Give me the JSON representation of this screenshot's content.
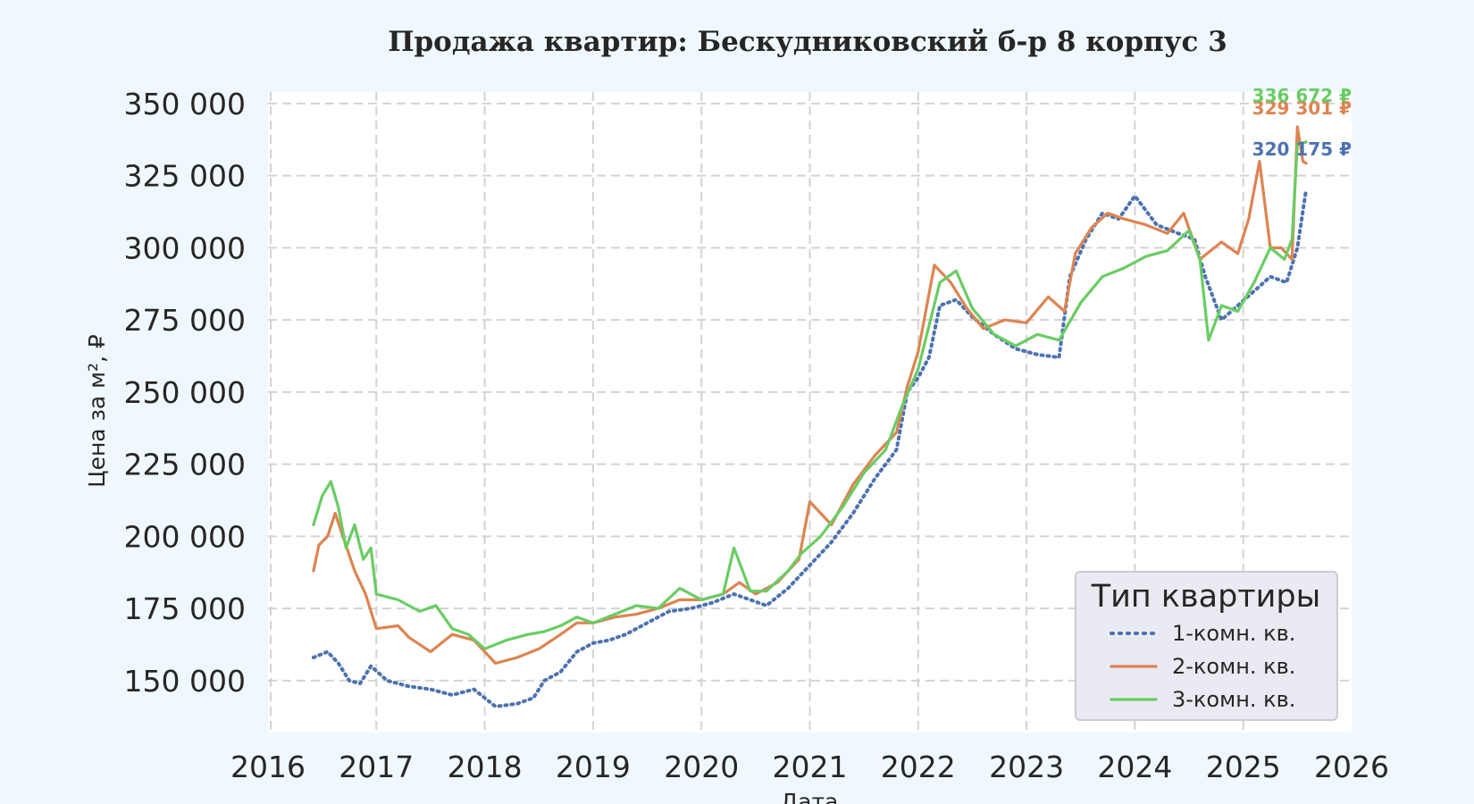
{
  "chart_data": {
    "type": "line",
    "title": "Продажа квартир: Бескудниковский б-р 8 корпус 3",
    "xlabel": "Дата",
    "ylabel": "Цена за м², ₽",
    "xlim": [
      2016.0,
      2026.0
    ],
    "ylim": [
      132000,
      354000
    ],
    "x_ticks": [
      "2016",
      "2017",
      "2018",
      "2019",
      "2020",
      "2021",
      "2022",
      "2023",
      "2024",
      "2025",
      "2026"
    ],
    "y_ticks": [
      "150 000",
      "175 000",
      "200 000",
      "225 000",
      "250 000",
      "275 000",
      "300 000",
      "325 000",
      "350 000"
    ],
    "grid": true,
    "legend": {
      "title": "Тип квартиры",
      "placement": "lower-right"
    },
    "series": [
      {
        "name": "1-комн. кв.",
        "color": "#4c72b0",
        "style": "dotted",
        "end_label": "320 175 ₽",
        "x": [
          2016.42,
          2016.55,
          2016.65,
          2016.75,
          2016.85,
          2016.95,
          2017.1,
          2017.3,
          2017.5,
          2017.7,
          2017.9,
          2018.1,
          2018.3,
          2018.45,
          2018.55,
          2018.7,
          2018.85,
          2019.0,
          2019.15,
          2019.3,
          2019.5,
          2019.7,
          2019.9,
          2020.1,
          2020.3,
          2020.45,
          2020.6,
          2020.8,
          2021.0,
          2021.2,
          2021.4,
          2021.6,
          2021.8,
          2021.9,
          2022.0,
          2022.1,
          2022.2,
          2022.35,
          2022.5,
          2022.7,
          2022.9,
          2023.1,
          2023.3,
          2023.4,
          2023.55,
          2023.7,
          2023.85,
          2024.0,
          2024.2,
          2024.4,
          2024.55,
          2024.65,
          2024.8,
          2024.95,
          2025.1,
          2025.25,
          2025.4,
          2025.5,
          2025.58
        ],
        "values": [
          158000,
          160000,
          156000,
          150000,
          149000,
          155000,
          150000,
          148000,
          147000,
          145000,
          147000,
          141000,
          142000,
          144000,
          150000,
          153000,
          160000,
          163000,
          164000,
          166000,
          170000,
          174000,
          175000,
          177000,
          180000,
          178000,
          176000,
          182000,
          190000,
          198000,
          208000,
          220000,
          230000,
          250000,
          255000,
          262000,
          280000,
          282000,
          276000,
          270000,
          265000,
          263000,
          262000,
          290000,
          303000,
          312000,
          310000,
          318000,
          308000,
          305000,
          303000,
          290000,
          275000,
          280000,
          285000,
          290000,
          288000,
          300000,
          320175
        ]
      },
      {
        "name": "2-комн. кв.",
        "color": "#dd8452",
        "style": "solid",
        "end_label": "329 301 ₽",
        "x": [
          2016.42,
          2016.47,
          2016.55,
          2016.62,
          2016.7,
          2016.8,
          2016.9,
          2017.0,
          2017.2,
          2017.3,
          2017.5,
          2017.7,
          2017.9,
          2018.1,
          2018.3,
          2018.5,
          2018.7,
          2018.85,
          2019.0,
          2019.2,
          2019.4,
          2019.6,
          2019.8,
          2020.0,
          2020.2,
          2020.35,
          2020.5,
          2020.7,
          2020.9,
          2021.0,
          2021.2,
          2021.4,
          2021.6,
          2021.8,
          2021.9,
          2022.0,
          2022.15,
          2022.3,
          2022.45,
          2022.6,
          2022.8,
          2023.0,
          2023.2,
          2023.35,
          2023.45,
          2023.6,
          2023.75,
          2023.9,
          2024.1,
          2024.3,
          2024.45,
          2024.6,
          2024.8,
          2024.95,
          2025.05,
          2025.15,
          2025.25,
          2025.35,
          2025.45,
          2025.5,
          2025.55,
          2025.58
        ],
        "values": [
          188000,
          197000,
          200000,
          208000,
          199000,
          188000,
          180000,
          168000,
          169000,
          165000,
          160000,
          166000,
          164000,
          156000,
          158000,
          161000,
          166000,
          170000,
          170000,
          172000,
          173000,
          175000,
          178000,
          178000,
          180000,
          184000,
          180000,
          184000,
          192000,
          212000,
          204000,
          218000,
          228000,
          236000,
          252000,
          264000,
          294000,
          288000,
          279000,
          272000,
          275000,
          274000,
          283000,
          278000,
          298000,
          307000,
          312000,
          310000,
          308000,
          305000,
          312000,
          296000,
          302000,
          298000,
          310000,
          330000,
          300000,
          300000,
          296000,
          342000,
          330000,
          329301
        ]
      },
      {
        "name": "3-комн. кв.",
        "color": "#6acc64",
        "style": "solid",
        "end_label": "336 672 ₽",
        "x": [
          2016.42,
          2016.5,
          2016.58,
          2016.65,
          2016.72,
          2016.8,
          2016.88,
          2016.95,
          2017.0,
          2017.2,
          2017.4,
          2017.55,
          2017.7,
          2017.85,
          2018.0,
          2018.2,
          2018.4,
          2018.55,
          2018.7,
          2018.85,
          2019.0,
          2019.2,
          2019.4,
          2019.6,
          2019.8,
          2020.0,
          2020.2,
          2020.3,
          2020.45,
          2020.6,
          2020.8,
          2020.92,
          2021.1,
          2021.3,
          2021.5,
          2021.7,
          2021.85,
          2022.0,
          2022.2,
          2022.35,
          2022.5,
          2022.7,
          2022.9,
          2023.1,
          2023.3,
          2023.5,
          2023.7,
          2023.9,
          2024.1,
          2024.3,
          2024.5,
          2024.6,
          2024.68,
          2024.8,
          2024.95,
          2025.1,
          2025.25,
          2025.38,
          2025.45,
          2025.5,
          2025.58
        ],
        "values": [
          204000,
          214000,
          219000,
          210000,
          196000,
          204000,
          192000,
          196000,
          180000,
          178000,
          174000,
          176000,
          168000,
          166000,
          161000,
          164000,
          166000,
          167000,
          169000,
          172000,
          170000,
          173000,
          176000,
          175000,
          182000,
          178000,
          180000,
          196000,
          181000,
          181000,
          188000,
          194000,
          200000,
          210000,
          222000,
          230000,
          245000,
          258000,
          288000,
          292000,
          279000,
          270000,
          266000,
          270000,
          268000,
          281000,
          290000,
          293000,
          297000,
          299000,
          306000,
          296000,
          268000,
          280000,
          278000,
          288000,
          300000,
          296000,
          303000,
          336000,
          336672
        ]
      }
    ]
  }
}
